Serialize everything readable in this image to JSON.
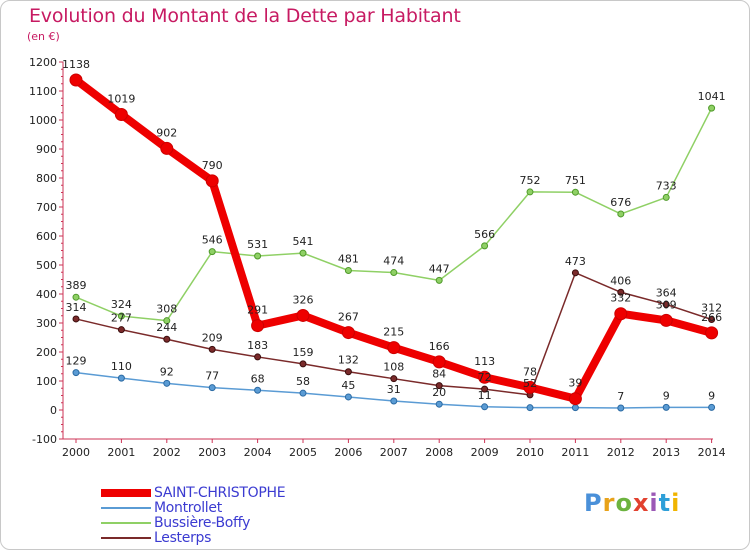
{
  "title": "Evolution du Montant de la Dette par Habitant",
  "unit": "(en €)",
  "logo": {
    "text": "Proxiti",
    "letters": [
      "P",
      "r",
      "o",
      "x",
      "i",
      "t",
      "i"
    ]
  },
  "chart_data": {
    "type": "line",
    "title": "Evolution du Montant de la Dette par Habitant",
    "subtitle": "(en €)",
    "xlabel": "",
    "ylabel": "",
    "categories": [
      "2000",
      "2001",
      "2002",
      "2003",
      "2004",
      "2005",
      "2006",
      "2007",
      "2008",
      "2009",
      "2010",
      "2011",
      "2012",
      "2013",
      "2014"
    ],
    "yticks": [
      -100,
      0,
      100,
      200,
      300,
      400,
      500,
      600,
      700,
      800,
      900,
      1000,
      1100,
      1200
    ],
    "ylim": [
      -100,
      1200
    ],
    "grid": false,
    "legend_position": "bottom-left",
    "series": [
      {
        "name": "SAINT-CHRISTOPHE",
        "color": "#ee0000",
        "values": [
          1138,
          1019,
          902,
          790,
          291,
          326,
          267,
          215,
          166,
          113,
          78,
          39,
          332,
          309,
          266
        ]
      },
      {
        "name": "Montrollet",
        "color": "#5a9bd4",
        "values": [
          129,
          110,
          92,
          77,
          68,
          58,
          45,
          31,
          20,
          11,
          8,
          8,
          7,
          9,
          9
        ]
      },
      {
        "name": "Bussière-Boffy",
        "color": "#8fd065",
        "values": [
          389,
          324,
          308,
          546,
          531,
          541,
          481,
          474,
          447,
          566,
          752,
          751,
          676,
          733,
          1041
        ]
      },
      {
        "name": "Lesterps",
        "color": "#7a2a2a",
        "values": [
          314,
          277,
          244,
          209,
          183,
          159,
          132,
          108,
          84,
          72,
          52,
          473,
          406,
          364,
          312
        ]
      }
    ],
    "point_labels": [
      [
        "1138",
        "1019",
        "902",
        "790",
        "291",
        "326",
        "267",
        "215",
        "166",
        "113",
        "78",
        "39",
        "332",
        "309",
        "266"
      ],
      [
        "129",
        "110",
        "92",
        "77",
        "68",
        "58",
        "45",
        "31",
        "20",
        "11",
        "",
        "",
        "7",
        "9",
        "9"
      ],
      [
        "389",
        "324",
        "308",
        "546",
        "531",
        "541",
        "481",
        "474",
        "447",
        "566",
        "752",
        "751",
        "676",
        "733",
        "1041"
      ],
      [
        "314",
        "277",
        "244",
        "209",
        "183",
        "159",
        "132",
        "108",
        "84",
        "72",
        "52",
        "473",
        "406",
        "364",
        "312"
      ]
    ]
  }
}
